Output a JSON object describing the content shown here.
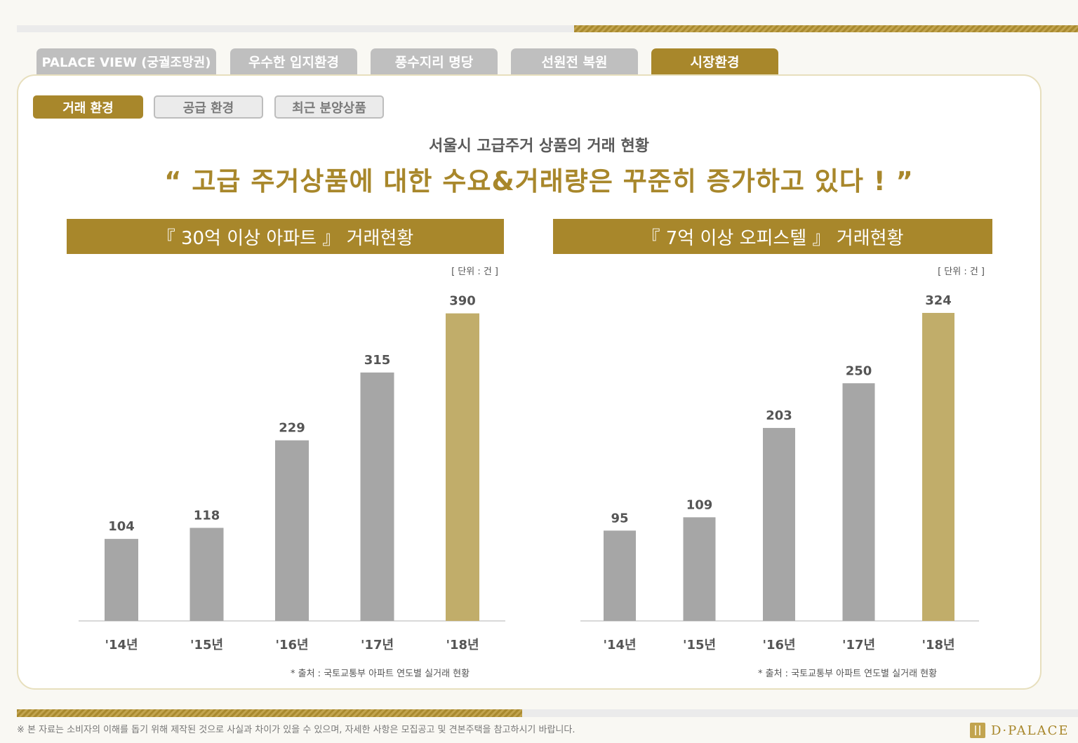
{
  "main_tabs": [
    {
      "label": "PALACE VIEW (궁궐조망권)",
      "active": false
    },
    {
      "label": "우수한 입지환경",
      "active": false
    },
    {
      "label": "풍수지리 명당",
      "active": false
    },
    {
      "label": "선원전 복원",
      "active": false
    },
    {
      "label": "시장환경",
      "active": true
    }
  ],
  "sub_tabs": [
    {
      "label": "거래 환경",
      "active": true
    },
    {
      "label": "공급 환경",
      "active": false
    },
    {
      "label": "최근 분양상품",
      "active": false
    }
  ],
  "headline": {
    "subtitle": "서울시 고급주거 상품의 거래 현황",
    "title": "“ 고급 주거상품에 대한 수요&거래량은 꾸준히 증가하고 있다 ! ”"
  },
  "chart_data": [
    {
      "type": "bar",
      "title": "『 30억 이상 아파트 』 거래현황",
      "unit_note": "[ 단위 : 건 ]",
      "categories": [
        "'14년",
        "'15년",
        "'16년",
        "'17년",
        "'18년"
      ],
      "values": [
        104,
        118,
        229,
        315,
        390
      ],
      "value_labels": [
        "104",
        "118",
        "229",
        "315",
        "390"
      ],
      "highlight_index": 4,
      "colors": {
        "bar": "#a6a6a6",
        "highlight": "#c1ad6a"
      },
      "source": "* 출처 : 국토교통부 아파트 연도별 실거래 현황"
    },
    {
      "type": "bar",
      "title": "『 7억 이상 오피스텔 』 거래현황",
      "unit_note": "[ 단위 : 건 ]",
      "categories": [
        "'14년",
        "'15년",
        "'16년",
        "'17년",
        "'18년"
      ],
      "values": [
        95,
        109,
        203,
        250,
        324
      ],
      "value_labels": [
        "95",
        "109",
        "203",
        "250",
        "324"
      ],
      "highlight_index": 4,
      "colors": {
        "bar": "#a6a6a6",
        "highlight": "#c1ad6a"
      },
      "source": "* 출처 : 국토교통부 아파트 연도별 실거래 현황"
    }
  ],
  "footer": {
    "disclaimer": "※ 본 자료는 소비자의 이해를 돕기 위해 제작된 것으로 사실과 차이가 있을 수 있으며, 자세한 사항은 모집공고 및 견본주택을 참고하시기 바랍니다.",
    "logo_text": "D·PALACE"
  },
  "colors": {
    "gold": "#a8872b",
    "gray_tab": "#bfbfbf",
    "background": "#f9f8f3"
  }
}
